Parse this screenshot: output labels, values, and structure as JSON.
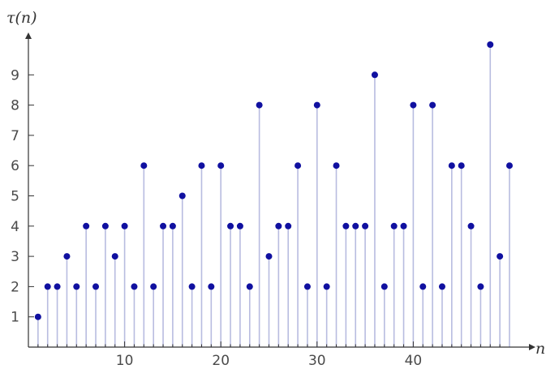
{
  "chart_data": {
    "type": "scatter",
    "style": "stem",
    "xlabel": "n",
    "ylabel": "τ(n)",
    "xlim": [
      0,
      50
    ],
    "ylim": [
      0,
      10
    ],
    "xticks": [
      10,
      20,
      30,
      40
    ],
    "yticks": [
      1,
      2,
      3,
      4,
      5,
      6,
      7,
      8,
      9
    ],
    "grid": false,
    "x": [
      1,
      2,
      3,
      4,
      5,
      6,
      7,
      8,
      9,
      10,
      11,
      12,
      13,
      14,
      15,
      16,
      17,
      18,
      19,
      20,
      21,
      22,
      23,
      24,
      25,
      26,
      27,
      28,
      29,
      30,
      31,
      32,
      33,
      34,
      35,
      36,
      37,
      38,
      39,
      40,
      41,
      42,
      43,
      44,
      45,
      46,
      47,
      48,
      49,
      50
    ],
    "values": [
      1,
      2,
      2,
      3,
      2,
      4,
      2,
      4,
      3,
      4,
      2,
      6,
      2,
      4,
      4,
      5,
      2,
      6,
      2,
      6,
      4,
      4,
      2,
      8,
      3,
      4,
      4,
      6,
      2,
      8,
      2,
      6,
      4,
      4,
      4,
      9,
      2,
      4,
      4,
      8,
      2,
      8,
      2,
      6,
      6,
      4,
      2,
      10,
      3,
      6
    ],
    "colors": {
      "point": "#1010a0",
      "stem": "#b8bce0",
      "axis": "#333333"
    }
  }
}
